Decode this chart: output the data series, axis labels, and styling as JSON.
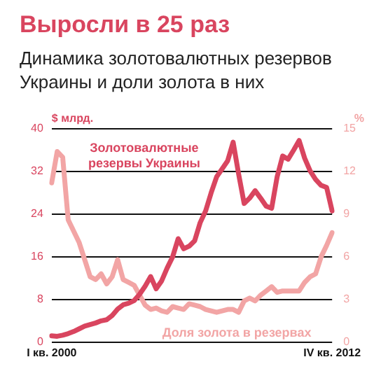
{
  "chart_data": {
    "type": "line",
    "title": "Выросли в 25 раз",
    "subtitle": "Динамика золотовалютных резервов Украины и доли золота в них",
    "ylabel": "$ млрд.",
    "y2label": "%",
    "categories": [
      "I кв. 2000",
      null,
      null,
      null,
      null,
      null,
      null,
      null,
      null,
      null,
      null,
      null,
      null,
      null,
      null,
      null,
      null,
      null,
      null,
      null,
      null,
      null,
      null,
      null,
      null,
      null,
      null,
      null,
      null,
      null,
      null,
      null,
      null,
      null,
      null,
      null,
      null,
      null,
      null,
      null,
      null,
      null,
      null,
      null,
      null,
      null,
      null,
      null,
      null,
      null,
      null,
      "IV кв. 2012"
    ],
    "series": [
      {
        "name": "Золотовалютные резервы Украины",
        "color": "#d9455f",
        "values": [
          1.2,
          1.1,
          1.3,
          1.6,
          2.0,
          2.5,
          3.0,
          3.3,
          3.6,
          4.0,
          4.2,
          5.0,
          6.2,
          7.0,
          7.3,
          7.8,
          9.0,
          10.5,
          12.3,
          10.0,
          11.5,
          13.9,
          16.0,
          19.4,
          17.5,
          18.0,
          19.0,
          22.4,
          24.6,
          28.0,
          31.0,
          32.5,
          34.0,
          37.5,
          31.5,
          26.0,
          27.0,
          28.4,
          27.0,
          25.5,
          25.1,
          31.0,
          34.9,
          34.3,
          36.0,
          37.8,
          34.5,
          32.1,
          30.5,
          29.4,
          29.0,
          24.6
        ]
      },
      {
        "name": "Доля золота в резервах",
        "color": "#f2a5a5",
        "axis": "y2",
        "values": [
          11.2,
          13.4,
          13.0,
          8.6,
          7.8,
          7.0,
          5.8,
          4.6,
          4.4,
          4.8,
          4.1,
          4.6,
          5.8,
          4.4,
          4.2,
          4.0,
          3.3,
          2.6,
          2.3,
          2.4,
          2.2,
          2.1,
          2.5,
          2.4,
          2.3,
          2.7,
          2.6,
          2.5,
          2.3,
          2.2,
          2.1,
          2.2,
          2.3,
          2.3,
          2.1,
          2.9,
          3.1,
          2.9,
          3.3,
          3.6,
          3.9,
          3.5,
          3.6,
          3.6,
          3.6,
          3.6,
          4.2,
          4.6,
          4.8,
          6.0,
          6.8,
          7.7
        ]
      }
    ],
    "ylim": [
      0,
      40
    ],
    "yticks": [
      0,
      8,
      16,
      24,
      32,
      40
    ],
    "y2lim": [
      0,
      15
    ],
    "y2ticks": [
      0,
      3,
      6,
      9,
      12,
      15
    ],
    "grid": "y",
    "legend": false,
    "marker": "none",
    "line_style": "solid"
  }
}
